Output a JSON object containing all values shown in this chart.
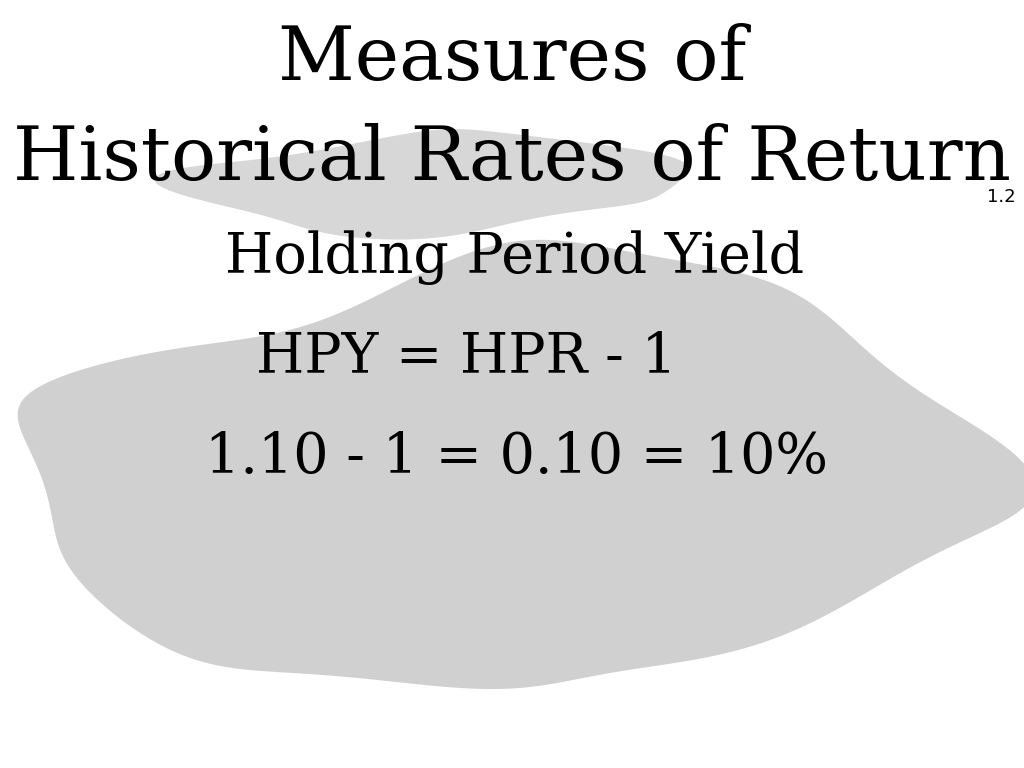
{
  "title_line1": "Measures of",
  "title_line2": "Historical Rates of Return",
  "slide_number": "1.2",
  "line1": "Holding Period Yield",
  "line2": "HPY = HPR - 1",
  "line3": "1.10 - 1 = 0.10 = 10%",
  "background_color": "#ffffff",
  "text_color": "#000000",
  "blob_color": "#d0d0d0",
  "title_fontsize": 54,
  "subtitle_fontsize": 40,
  "body_fontsize": 40,
  "slide_num_fontsize": 13
}
